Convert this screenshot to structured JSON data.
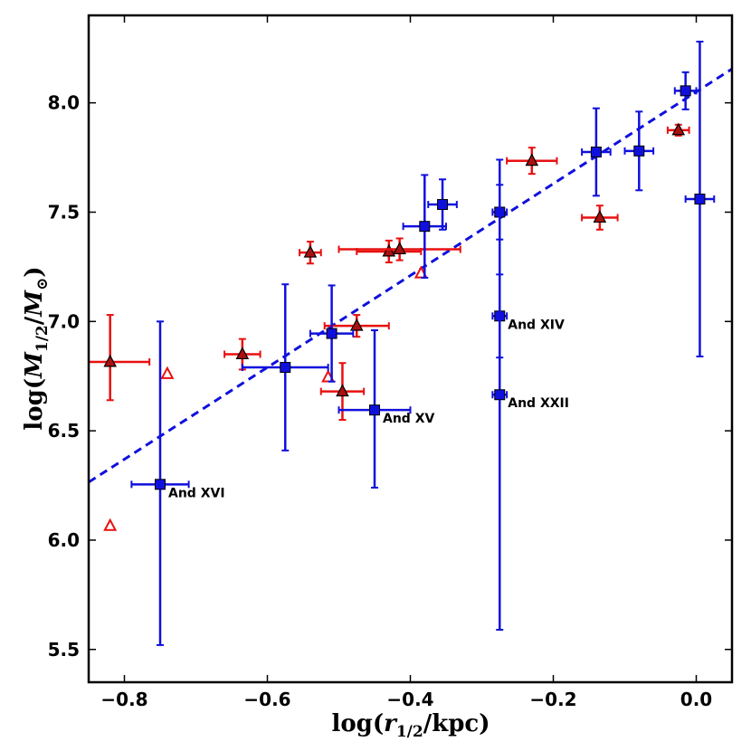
{
  "chart_data": {
    "type": "scatter",
    "xlabel": "log(r1/2/kpc)",
    "ylabel": "log(M1/2/M⊙)",
    "xlim": [
      -0.85,
      0.05
    ],
    "ylim": [
      5.35,
      8.4
    ],
    "xticks": [
      -0.8,
      -0.6,
      -0.4,
      -0.2,
      0.0
    ],
    "xtick_labels": [
      "−0.8",
      "−0.6",
      "−0.4",
      "−0.2",
      "0.0"
    ],
    "yticks": [
      5.5,
      6.0,
      6.5,
      7.0,
      7.5,
      8.0
    ],
    "ytick_labels": [
      "5.5",
      "6.0",
      "6.5",
      "7.0",
      "7.5",
      "8.0"
    ],
    "colors": {
      "blue": "#1010dd",
      "red": "#e81010",
      "red_fill": "#aa1010"
    },
    "series": [
      {
        "name": "blue-squares",
        "marker": "square",
        "points": [
          {
            "x": -0.75,
            "y": 6.255,
            "xerr": [
              0.04,
              0.04
            ],
            "yerr": [
              0.735,
              0.745
            ],
            "label": "And XVI"
          },
          {
            "x": -0.575,
            "y": 6.79,
            "xerr": [
              0.06,
              0.06
            ],
            "yerr": [
              0.38,
              0.38
            ]
          },
          {
            "x": -0.51,
            "y": 6.945,
            "xerr": [
              0.03,
              0.03
            ],
            "yerr": [
              0.22,
              0.22
            ]
          },
          {
            "x": -0.45,
            "y": 6.595,
            "xerr": [
              0.05,
              0.05
            ],
            "yerr": [
              0.355,
              0.365
            ],
            "label": "And XV"
          },
          {
            "x": -0.38,
            "y": 7.435,
            "xerr": [
              0.03,
              0.03
            ],
            "yerr": [
              0.235,
              0.235
            ]
          },
          {
            "x": -0.355,
            "y": 7.535,
            "xerr": [
              0.02,
              0.02
            ],
            "yerr": [
              0.115,
              0.115
            ]
          },
          {
            "x": -0.275,
            "y": 7.5,
            "xerr": [
              0.01,
              0.01
            ],
            "yerr": [
              0.125,
              0.125
            ]
          },
          {
            "x": -0.275,
            "y": 7.025,
            "xerr": [
              0.01,
              0.01
            ],
            "yerr": [
              0.19,
              0.19
            ],
            "label": "And XIV"
          },
          {
            "x": -0.275,
            "y": 6.665,
            "xerr": [
              0.01,
              0.01
            ],
            "yerr": [
              1.075,
              1.075
            ],
            "label": "And XXII"
          },
          {
            "x": -0.14,
            "y": 7.775,
            "xerr": [
              0.02,
              0.02
            ],
            "yerr": [
              0.2,
              0.2
            ]
          },
          {
            "x": -0.08,
            "y": 7.78,
            "xerr": [
              0.02,
              0.02
            ],
            "yerr": [
              0.18,
              0.18
            ]
          },
          {
            "x": -0.015,
            "y": 8.055,
            "xerr": [
              0.015,
              0.015
            ],
            "yerr": [
              0.085,
              0.085
            ]
          },
          {
            "x": 0.005,
            "y": 7.56,
            "xerr": [
              0.02,
              0.02
            ],
            "yerr": [
              0.72,
              0.72
            ]
          }
        ]
      },
      {
        "name": "red-filled-triangles",
        "marker": "triangle",
        "points": [
          {
            "x": -0.82,
            "y": 6.815,
            "xerr": [
              0.055,
              0.055
            ],
            "yerr": [
              0.175,
              0.215
            ]
          },
          {
            "x": -0.635,
            "y": 6.85,
            "xerr": [
              0.025,
              0.025
            ],
            "yerr": [
              0.07,
              0.07
            ]
          },
          {
            "x": -0.54,
            "y": 7.315,
            "xerr": [
              0.015,
              0.015
            ],
            "yerr": [
              0.05,
              0.05
            ]
          },
          {
            "x": -0.495,
            "y": 6.68,
            "xerr": [
              0.03,
              0.03
            ],
            "yerr": [
              0.13,
              0.13
            ]
          },
          {
            "x": -0.475,
            "y": 6.98,
            "xerr": [
              0.045,
              0.045
            ],
            "yerr": [
              0.05,
              0.05
            ]
          },
          {
            "x": -0.43,
            "y": 7.32,
            "xerr": [
              0.045,
              0.045
            ],
            "yerr": [
              0.05,
              0.05
            ]
          },
          {
            "x": -0.415,
            "y": 7.33,
            "xerr": [
              0.085,
              0.085
            ],
            "yerr": [
              0.05,
              0.05
            ]
          },
          {
            "x": -0.23,
            "y": 7.735,
            "xerr": [
              0.035,
              0.035
            ],
            "yerr": [
              0.06,
              0.06
            ]
          },
          {
            "x": -0.135,
            "y": 7.475,
            "xerr": [
              0.025,
              0.025
            ],
            "yerr": [
              0.055,
              0.055
            ]
          },
          {
            "x": -0.025,
            "y": 7.875,
            "xerr": [
              0.015,
              0.015
            ],
            "yerr": [
              0.025,
              0.025
            ]
          }
        ]
      },
      {
        "name": "red-open-triangles",
        "marker": "open-triangle",
        "points": [
          {
            "x": -0.82,
            "y": 6.065
          },
          {
            "x": -0.74,
            "y": 6.76
          },
          {
            "x": -0.515,
            "y": 6.745
          },
          {
            "x": -0.385,
            "y": 7.22
          }
        ]
      }
    ],
    "fit_line": {
      "style": "dashed",
      "slope": 2.1,
      "intercept": 8.05
    }
  }
}
